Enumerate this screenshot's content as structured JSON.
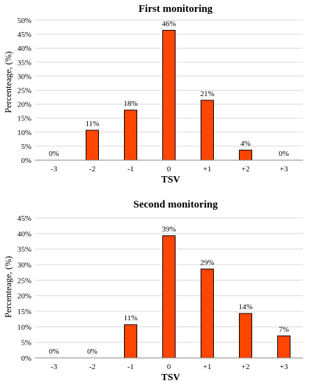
{
  "chart_data": [
    {
      "type": "bar",
      "title": "First monitoring",
      "xlabel": "TSV",
      "ylabel": "Percenteage, (%)",
      "categories": [
        "-3",
        "-2",
        "-1",
        "0",
        "+1",
        "+2",
        "+3"
      ],
      "values": [
        0,
        11,
        18,
        46,
        21,
        4,
        0
      ],
      "bar_values": [
        0,
        10.7,
        17.9,
        46.4,
        21.4,
        3.6,
        0
      ],
      "data_labels": [
        "0%",
        "11%",
        "18%",
        "46%",
        "21%",
        "4%",
        "0%"
      ],
      "ylim": [
        0,
        50
      ],
      "yticks": [
        "0%",
        "5%",
        "10%",
        "15%",
        "20%",
        "25%",
        "30%",
        "35%",
        "40%",
        "45%",
        "50%"
      ],
      "grid": true,
      "bar_color": "#FF4500"
    },
    {
      "type": "bar",
      "title": "Second monitoring",
      "xlabel": "TSV",
      "ylabel": "Percenteage, (%)",
      "categories": [
        "-3",
        "-2",
        "-1",
        "0",
        "+1",
        "+2",
        "+3"
      ],
      "values": [
        0,
        0,
        11,
        39,
        29,
        14,
        7
      ],
      "bar_values": [
        0,
        0,
        10.7,
        39.3,
        28.6,
        14.3,
        7.1
      ],
      "data_labels": [
        "0%",
        "0%",
        "11%",
        "39%",
        "29%",
        "14%",
        "7%"
      ],
      "ylim": [
        0,
        45
      ],
      "yticks": [
        "0%",
        "5%",
        "10%",
        "15%",
        "20%",
        "25%",
        "30%",
        "35%",
        "40%",
        "45%"
      ],
      "grid": true,
      "bar_color": "#FF4500"
    }
  ]
}
